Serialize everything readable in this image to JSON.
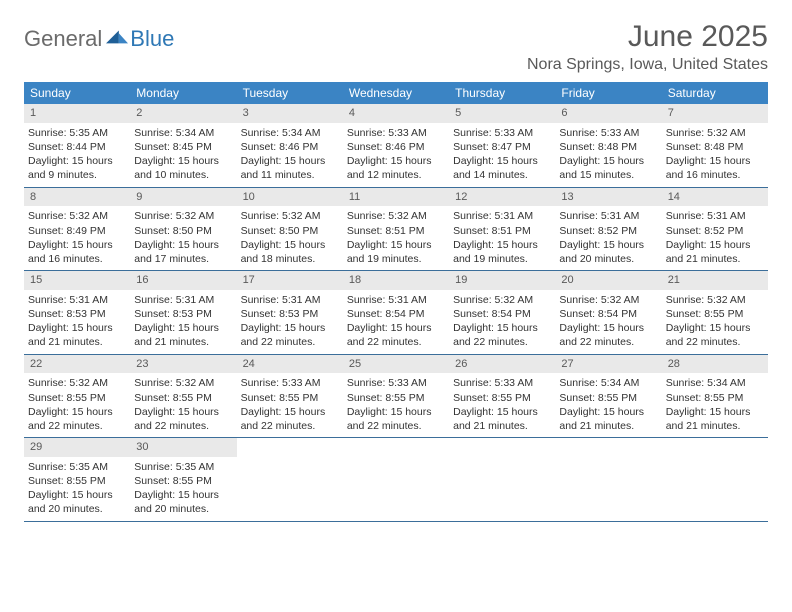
{
  "logo": {
    "text1": "General",
    "text2": "Blue"
  },
  "title": "June 2025",
  "location": "Nora Springs, Iowa, United States",
  "colors": {
    "header_bar": "#3b84c4",
    "row_divider": "#3b6e9a",
    "day_num_bg": "#e9e9e9",
    "text_muted": "#595959",
    "text_body": "#333333",
    "logo_gray": "#6b6b6b",
    "logo_blue": "#2f78b5",
    "logo_tri": "#1f5f97"
  },
  "day_names": [
    "Sunday",
    "Monday",
    "Tuesday",
    "Wednesday",
    "Thursday",
    "Friday",
    "Saturday"
  ],
  "weeks": [
    [
      {
        "n": "1",
        "sr": "5:35 AM",
        "ss": "8:44 PM",
        "dl": "15 hours and 9 minutes."
      },
      {
        "n": "2",
        "sr": "5:34 AM",
        "ss": "8:45 PM",
        "dl": "15 hours and 10 minutes."
      },
      {
        "n": "3",
        "sr": "5:34 AM",
        "ss": "8:46 PM",
        "dl": "15 hours and 11 minutes."
      },
      {
        "n": "4",
        "sr": "5:33 AM",
        "ss": "8:46 PM",
        "dl": "15 hours and 12 minutes."
      },
      {
        "n": "5",
        "sr": "5:33 AM",
        "ss": "8:47 PM",
        "dl": "15 hours and 14 minutes."
      },
      {
        "n": "6",
        "sr": "5:33 AM",
        "ss": "8:48 PM",
        "dl": "15 hours and 15 minutes."
      },
      {
        "n": "7",
        "sr": "5:32 AM",
        "ss": "8:48 PM",
        "dl": "15 hours and 16 minutes."
      }
    ],
    [
      {
        "n": "8",
        "sr": "5:32 AM",
        "ss": "8:49 PM",
        "dl": "15 hours and 16 minutes."
      },
      {
        "n": "9",
        "sr": "5:32 AM",
        "ss": "8:50 PM",
        "dl": "15 hours and 17 minutes."
      },
      {
        "n": "10",
        "sr": "5:32 AM",
        "ss": "8:50 PM",
        "dl": "15 hours and 18 minutes."
      },
      {
        "n": "11",
        "sr": "5:32 AM",
        "ss": "8:51 PM",
        "dl": "15 hours and 19 minutes."
      },
      {
        "n": "12",
        "sr": "5:31 AM",
        "ss": "8:51 PM",
        "dl": "15 hours and 19 minutes."
      },
      {
        "n": "13",
        "sr": "5:31 AM",
        "ss": "8:52 PM",
        "dl": "15 hours and 20 minutes."
      },
      {
        "n": "14",
        "sr": "5:31 AM",
        "ss": "8:52 PM",
        "dl": "15 hours and 21 minutes."
      }
    ],
    [
      {
        "n": "15",
        "sr": "5:31 AM",
        "ss": "8:53 PM",
        "dl": "15 hours and 21 minutes."
      },
      {
        "n": "16",
        "sr": "5:31 AM",
        "ss": "8:53 PM",
        "dl": "15 hours and 21 minutes."
      },
      {
        "n": "17",
        "sr": "5:31 AM",
        "ss": "8:53 PM",
        "dl": "15 hours and 22 minutes."
      },
      {
        "n": "18",
        "sr": "5:31 AM",
        "ss": "8:54 PM",
        "dl": "15 hours and 22 minutes."
      },
      {
        "n": "19",
        "sr": "5:32 AM",
        "ss": "8:54 PM",
        "dl": "15 hours and 22 minutes."
      },
      {
        "n": "20",
        "sr": "5:32 AM",
        "ss": "8:54 PM",
        "dl": "15 hours and 22 minutes."
      },
      {
        "n": "21",
        "sr": "5:32 AM",
        "ss": "8:55 PM",
        "dl": "15 hours and 22 minutes."
      }
    ],
    [
      {
        "n": "22",
        "sr": "5:32 AM",
        "ss": "8:55 PM",
        "dl": "15 hours and 22 minutes."
      },
      {
        "n": "23",
        "sr": "5:32 AM",
        "ss": "8:55 PM",
        "dl": "15 hours and 22 minutes."
      },
      {
        "n": "24",
        "sr": "5:33 AM",
        "ss": "8:55 PM",
        "dl": "15 hours and 22 minutes."
      },
      {
        "n": "25",
        "sr": "5:33 AM",
        "ss": "8:55 PM",
        "dl": "15 hours and 22 minutes."
      },
      {
        "n": "26",
        "sr": "5:33 AM",
        "ss": "8:55 PM",
        "dl": "15 hours and 21 minutes."
      },
      {
        "n": "27",
        "sr": "5:34 AM",
        "ss": "8:55 PM",
        "dl": "15 hours and 21 minutes."
      },
      {
        "n": "28",
        "sr": "5:34 AM",
        "ss": "8:55 PM",
        "dl": "15 hours and 21 minutes."
      }
    ],
    [
      {
        "n": "29",
        "sr": "5:35 AM",
        "ss": "8:55 PM",
        "dl": "15 hours and 20 minutes."
      },
      {
        "n": "30",
        "sr": "5:35 AM",
        "ss": "8:55 PM",
        "dl": "15 hours and 20 minutes."
      },
      null,
      null,
      null,
      null,
      null
    ]
  ],
  "labels": {
    "sunrise": "Sunrise: ",
    "sunset": "Sunset: ",
    "daylight": "Daylight: "
  }
}
